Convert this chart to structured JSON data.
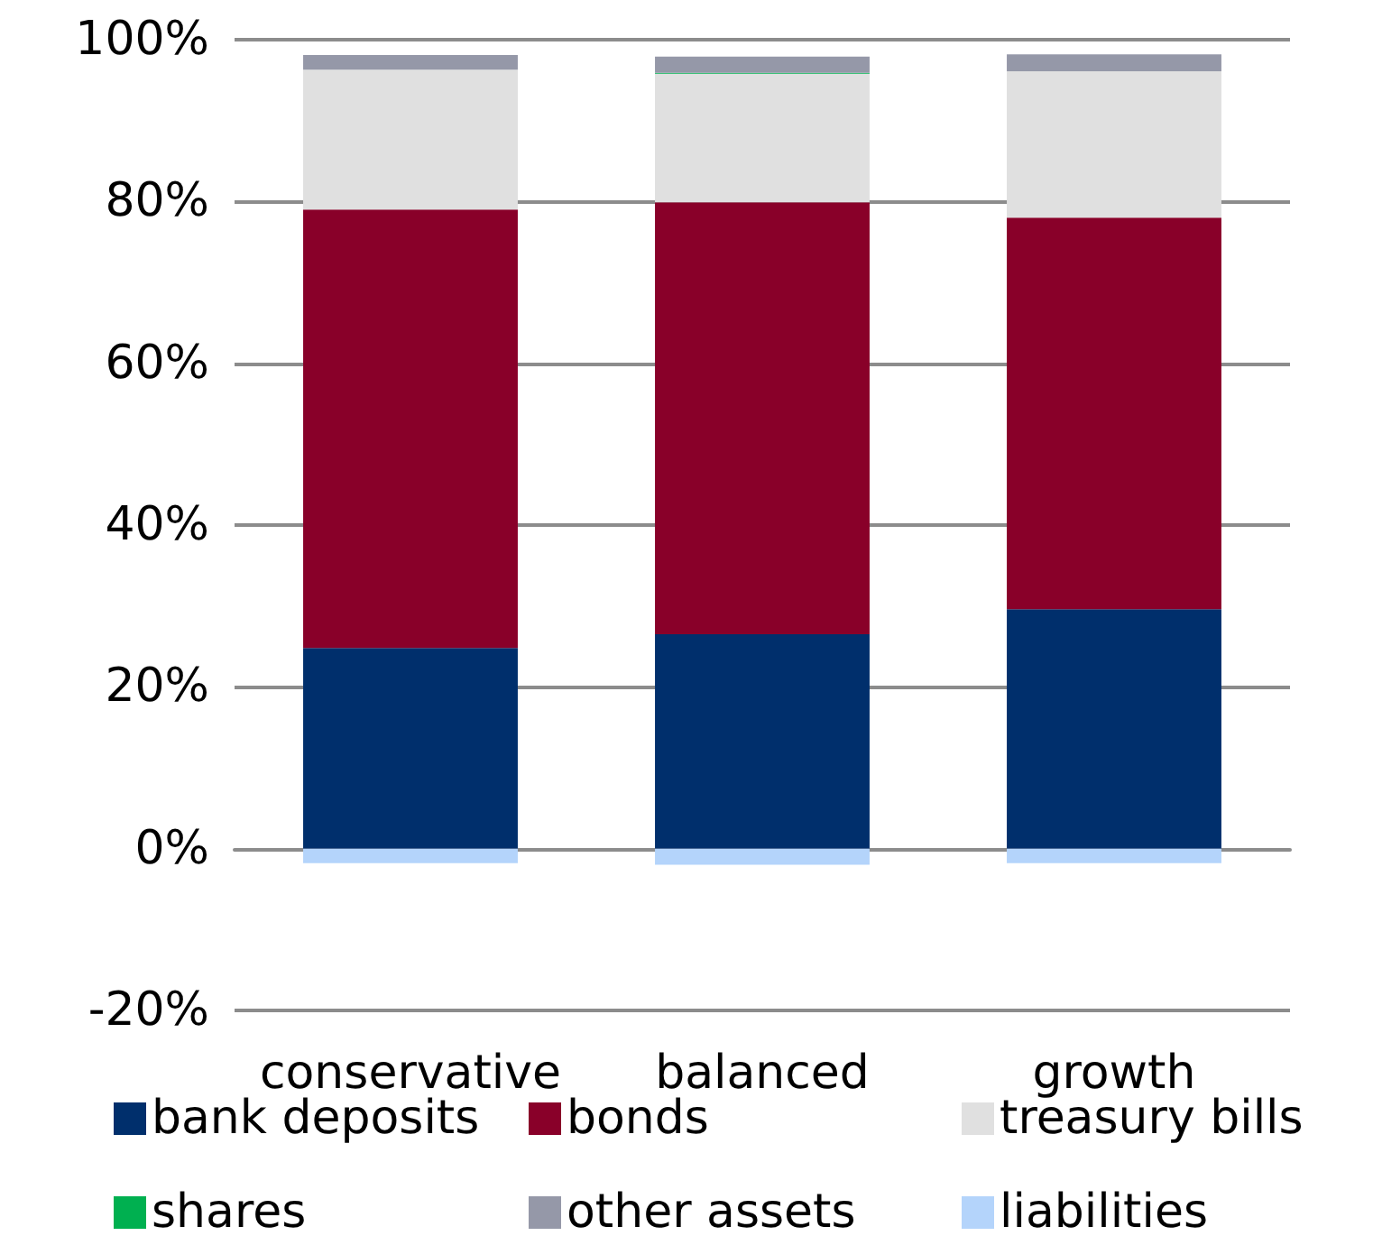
{
  "chart_data": {
    "type": "bar",
    "stacked": true,
    "categories": [
      "conservative",
      "balanced",
      "growth"
    ],
    "series": [
      {
        "name": "bank deposits",
        "color": "#002f6c",
        "values": [
          24.8,
          26.5,
          29.6
        ]
      },
      {
        "name": "bonds",
        "color": "#890029",
        "values": [
          54.2,
          53.4,
          48.4
        ]
      },
      {
        "name": "treasury bills",
        "color": "#e0e0e0",
        "values": [
          17.3,
          15.9,
          18.1
        ]
      },
      {
        "name": "shares",
        "color": "#00b050",
        "values": [
          0,
          0.1,
          0
        ]
      },
      {
        "name": "other assets",
        "color": "#9598a8",
        "values": [
          1.8,
          2.0,
          2.1
        ]
      },
      {
        "name": "liabilities",
        "color": "#b4d4fb",
        "values": [
          -1.8,
          -2.0,
          -1.8
        ]
      }
    ],
    "ylim": [
      -20,
      100
    ],
    "yticks": [
      {
        "value": -20,
        "label": "-20%"
      },
      {
        "value": 0,
        "label": "0%"
      },
      {
        "value": 20,
        "label": "20%"
      },
      {
        "value": 40,
        "label": "40%"
      },
      {
        "value": 60,
        "label": "60%"
      },
      {
        "value": 80,
        "label": "80%"
      },
      {
        "value": 100,
        "label": "100%"
      }
    ],
    "grid": "y",
    "legend": "bottom"
  }
}
